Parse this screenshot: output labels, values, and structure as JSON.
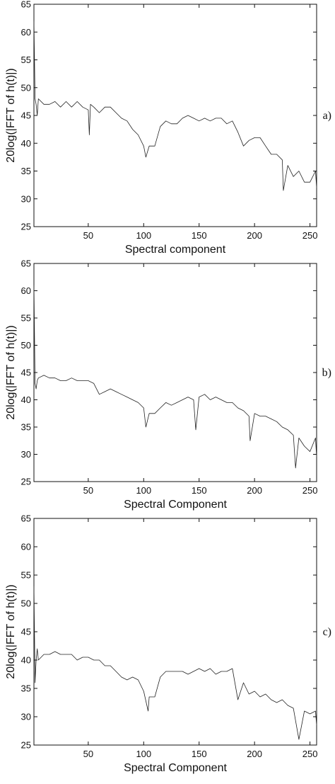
{
  "chart_data": [
    {
      "type": "line",
      "panel_label": "a)",
      "xlabel": "Spectral component",
      "ylabel": "20log(|FFT of h(t)|)",
      "xlim": [
        1,
        256
      ],
      "ylim": [
        25,
        65
      ],
      "xticks": [
        50,
        100,
        150,
        200,
        250
      ],
      "yticks": [
        25,
        30,
        35,
        40,
        45,
        50,
        55,
        60,
        65
      ],
      "grid": false,
      "series": [
        {
          "x": [
            1,
            2,
            3,
            4,
            5,
            10,
            15,
            20,
            25,
            30,
            35,
            40,
            45,
            50,
            51,
            52,
            55,
            60,
            65,
            70,
            75,
            80,
            85,
            90,
            95,
            100,
            102,
            105,
            110,
            115,
            120,
            125,
            130,
            135,
            140,
            145,
            150,
            155,
            160,
            165,
            170,
            175,
            180,
            185,
            190,
            195,
            200,
            205,
            210,
            215,
            220,
            225,
            226,
            230,
            235,
            240,
            245,
            250,
            255,
            256
          ],
          "y": [
            62,
            48,
            47,
            45,
            48,
            47,
            47,
            47.5,
            46.5,
            47.5,
            46.5,
            47.5,
            46.5,
            46,
            41.5,
            47,
            46.5,
            45.5,
            46.5,
            46.5,
            45.5,
            44.5,
            44,
            42.5,
            41.5,
            39.5,
            37.5,
            39.5,
            39.5,
            43,
            44,
            43.5,
            43.5,
            44.5,
            45,
            44.5,
            44,
            44.5,
            44,
            44.5,
            44.5,
            43.5,
            44,
            42,
            39.5,
            40.5,
            41,
            41,
            39.5,
            38,
            38,
            37,
            31.5,
            36,
            34,
            35,
            33,
            33,
            35,
            32
          ]
        }
      ]
    },
    {
      "type": "line",
      "panel_label": "b)",
      "xlabel": "Spectral Component",
      "ylabel": "20log(|FFT of h(t)|)",
      "xlim": [
        1,
        256
      ],
      "ylim": [
        25,
        65
      ],
      "xticks": [
        50,
        100,
        150,
        200,
        250
      ],
      "yticks": [
        25,
        30,
        35,
        40,
        45,
        50,
        55,
        60,
        65
      ],
      "grid": false,
      "series": [
        {
          "x": [
            1,
            2,
            3,
            4,
            5,
            10,
            15,
            20,
            25,
            30,
            35,
            40,
            45,
            50,
            55,
            60,
            65,
            70,
            75,
            80,
            85,
            90,
            95,
            100,
            102,
            105,
            110,
            115,
            120,
            125,
            130,
            135,
            140,
            145,
            147,
            150,
            155,
            160,
            165,
            170,
            175,
            180,
            185,
            190,
            195,
            196,
            200,
            205,
            210,
            215,
            220,
            225,
            230,
            235,
            237,
            240,
            245,
            250,
            255,
            256
          ],
          "y": [
            61,
            43,
            42,
            43.5,
            44,
            44.5,
            44,
            44,
            43.5,
            43.5,
            44,
            43.5,
            43.5,
            43.5,
            43,
            41,
            41.5,
            42,
            41.5,
            41,
            40.5,
            40,
            39.5,
            38.5,
            35,
            37.5,
            37.5,
            38.5,
            39.5,
            39,
            39.5,
            40,
            40.5,
            40,
            34.5,
            40.5,
            41,
            40,
            40.5,
            40,
            39.5,
            39.5,
            38.5,
            38,
            37,
            32.5,
            37.5,
            37,
            37,
            36.5,
            36,
            35,
            34.5,
            33.5,
            27.5,
            33,
            31.5,
            30.5,
            33,
            29.5
          ]
        }
      ]
    },
    {
      "type": "line",
      "panel_label": "c)",
      "xlabel": "Spectral Component",
      "ylabel": "20log(|FFT of h(t)|)",
      "xlim": [
        1,
        256
      ],
      "ylim": [
        25,
        65
      ],
      "xticks": [
        50,
        100,
        150,
        200,
        250
      ],
      "yticks": [
        25,
        30,
        35,
        40,
        45,
        50,
        55,
        60,
        65
      ],
      "grid": false,
      "series": [
        {
          "x": [
            1,
            2,
            3,
            4,
            5,
            10,
            15,
            20,
            25,
            30,
            35,
            40,
            45,
            50,
            55,
            60,
            65,
            70,
            75,
            80,
            85,
            90,
            95,
            100,
            104,
            105,
            110,
            115,
            120,
            125,
            130,
            135,
            140,
            145,
            150,
            155,
            160,
            165,
            170,
            175,
            180,
            185,
            190,
            195,
            200,
            205,
            210,
            215,
            220,
            225,
            230,
            235,
            240,
            245,
            250,
            255,
            256
          ],
          "y": [
            53,
            36,
            40,
            42,
            40,
            41,
            41,
            41.5,
            41,
            41,
            41,
            40,
            40.5,
            40.5,
            40,
            40,
            39,
            39,
            38,
            37,
            36.5,
            37,
            36.5,
            34.5,
            31,
            33.5,
            33.5,
            37,
            38,
            38,
            38,
            38,
            37.5,
            38,
            38.5,
            38,
            38.5,
            37.5,
            38,
            38,
            38.5,
            33,
            36,
            34,
            34.5,
            33.5,
            34,
            33,
            32.5,
            33,
            32,
            31.5,
            26,
            31,
            30.5,
            31,
            28.5
          ]
        }
      ]
    }
  ]
}
